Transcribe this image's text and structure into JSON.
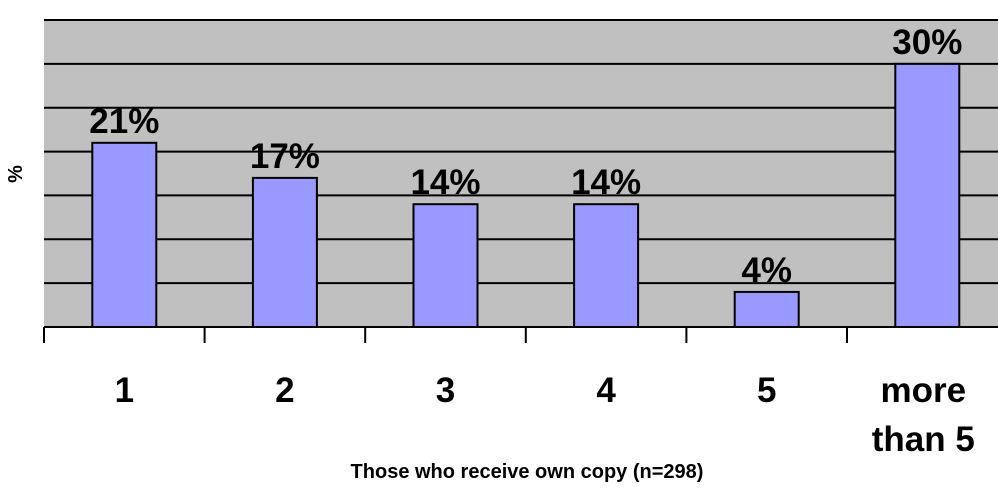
{
  "chart_data": {
    "type": "bar",
    "categories": [
      "1",
      "2",
      "3",
      "4",
      "5",
      "more than 5"
    ],
    "category_lines": [
      [
        "1"
      ],
      [
        "2"
      ],
      [
        "3"
      ],
      [
        "4"
      ],
      [
        "5"
      ],
      [
        "more",
        "than 5"
      ]
    ],
    "values": [
      21,
      17,
      14,
      14,
      4,
      30
    ],
    "data_labels": [
      "21%",
      "17%",
      "14%",
      "14%",
      "4%",
      "30%"
    ],
    "title": "",
    "xlabel": "Those who receive own copy (n=298)",
    "ylabel": "%",
    "ylim": [
      0,
      35
    ],
    "gridline_step": 5,
    "grid": true,
    "legend": "none",
    "colors": {
      "plot_background": "#c0c0c0",
      "bar_fill": "#9999ff",
      "bar_stroke": "#000000",
      "gridline": "#000000",
      "axis": "#000000",
      "text": "#000000"
    }
  }
}
